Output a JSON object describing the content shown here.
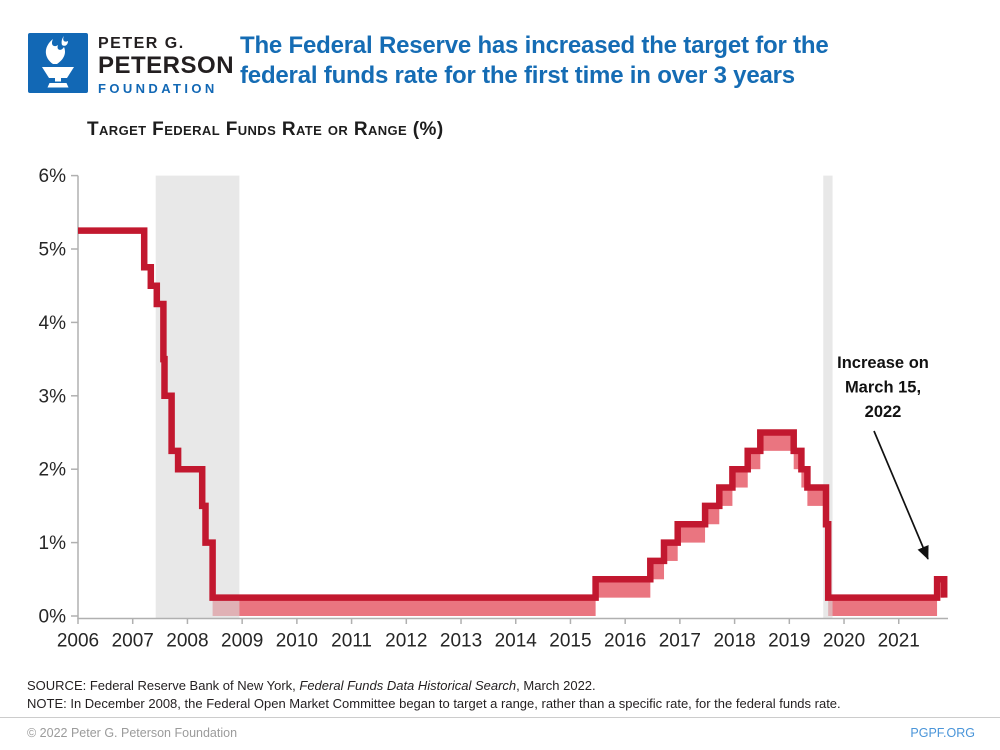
{
  "header": {
    "logo": {
      "line1": "PETER G.",
      "line2": "PETERSON",
      "line3": "FOUNDATION",
      "square_color": "#1268b5"
    },
    "title_line1": "The Federal Reserve has increased the target for the",
    "title_line2": "federal funds rate for the first time in over 3 years",
    "title_color": "#156cb4"
  },
  "chart_data": {
    "type": "step-line-with-range",
    "title": "Target Federal Funds Rate or Range (%)",
    "ylabel": "Target federal funds rate or range (%)",
    "ylim": [
      0,
      6
    ],
    "y_tick_labels": [
      "0%",
      "1%",
      "2%",
      "3%",
      "4%",
      "5%",
      "6%"
    ],
    "x_domain": [
      2006.5,
      2022.4
    ],
    "x_tick_years": [
      2006,
      2007,
      2008,
      2009,
      2010,
      2011,
      2012,
      2013,
      2014,
      2015,
      2016,
      2017,
      2018,
      2019,
      2020,
      2021
    ],
    "segments": [
      {
        "from": 2006.5,
        "to": 2007.71,
        "upper": 5.25,
        "lower": null
      },
      {
        "from": 2007.71,
        "to": 2007.83,
        "upper": 4.75,
        "lower": null
      },
      {
        "from": 2007.83,
        "to": 2007.94,
        "upper": 4.5,
        "lower": null
      },
      {
        "from": 2007.94,
        "to": 2008.06,
        "upper": 4.25,
        "lower": null
      },
      {
        "from": 2008.06,
        "to": 2008.08,
        "upper": 3.5,
        "lower": null
      },
      {
        "from": 2008.08,
        "to": 2008.21,
        "upper": 3.0,
        "lower": null
      },
      {
        "from": 2008.21,
        "to": 2008.33,
        "upper": 2.25,
        "lower": null
      },
      {
        "from": 2008.33,
        "to": 2008.77,
        "upper": 2.0,
        "lower": null
      },
      {
        "from": 2008.77,
        "to": 2008.83,
        "upper": 1.5,
        "lower": null
      },
      {
        "from": 2008.83,
        "to": 2008.96,
        "upper": 1.0,
        "lower": null
      },
      {
        "from": 2008.96,
        "to": 2015.96,
        "upper": 0.25,
        "lower": 0.0
      },
      {
        "from": 2015.96,
        "to": 2016.96,
        "upper": 0.5,
        "lower": 0.25
      },
      {
        "from": 2016.96,
        "to": 2017.21,
        "upper": 0.75,
        "lower": 0.5
      },
      {
        "from": 2017.21,
        "to": 2017.46,
        "upper": 1.0,
        "lower": 0.75
      },
      {
        "from": 2017.46,
        "to": 2017.96,
        "upper": 1.25,
        "lower": 1.0
      },
      {
        "from": 2017.96,
        "to": 2018.22,
        "upper": 1.5,
        "lower": 1.25
      },
      {
        "from": 2018.22,
        "to": 2018.46,
        "upper": 1.75,
        "lower": 1.5
      },
      {
        "from": 2018.46,
        "to": 2018.74,
        "upper": 2.0,
        "lower": 1.75
      },
      {
        "from": 2018.74,
        "to": 2018.97,
        "upper": 2.25,
        "lower": 2.0
      },
      {
        "from": 2018.97,
        "to": 2019.58,
        "upper": 2.5,
        "lower": 2.25
      },
      {
        "from": 2019.58,
        "to": 2019.72,
        "upper": 2.25,
        "lower": 2.0
      },
      {
        "from": 2019.72,
        "to": 2019.83,
        "upper": 2.0,
        "lower": 1.75
      },
      {
        "from": 2019.83,
        "to": 2020.17,
        "upper": 1.75,
        "lower": 1.5
      },
      {
        "from": 2020.17,
        "to": 2020.21,
        "upper": 1.25,
        "lower": 1.0
      },
      {
        "from": 2020.21,
        "to": 2022.2,
        "upper": 0.25,
        "lower": 0.0
      },
      {
        "from": 2022.2,
        "to": 2022.33,
        "upper": 0.5,
        "lower": 0.25
      }
    ],
    "recession_bands": [
      {
        "from": 2007.92,
        "to": 2009.45
      },
      {
        "from": 2020.12,
        "to": 2020.29
      }
    ],
    "annotation": {
      "lines": [
        "Increase on",
        "March 15,",
        "2022"
      ]
    },
    "colors": {
      "line": "#c2182f",
      "range_band": "#ea7580",
      "recession_band": "#d9d9d9",
      "axis": "#b0b0b0",
      "tick_label": "#262626",
      "annotation_text": "#111111"
    },
    "legend": "none",
    "grid": "off"
  },
  "source": {
    "source_prefix": "SOURCE: Federal Reserve Bank of New York, ",
    "source_italic": "Federal Funds Data Historical Search",
    "source_suffix": ", March 2022.",
    "note": "NOTE: In December 2008, the Federal Open Market Committee began to target a range, rather than a specific rate, for the federal funds rate."
  },
  "footer": {
    "copyright": "© 2022 Peter G. Peterson Foundation",
    "site": "PGPF.ORG"
  }
}
